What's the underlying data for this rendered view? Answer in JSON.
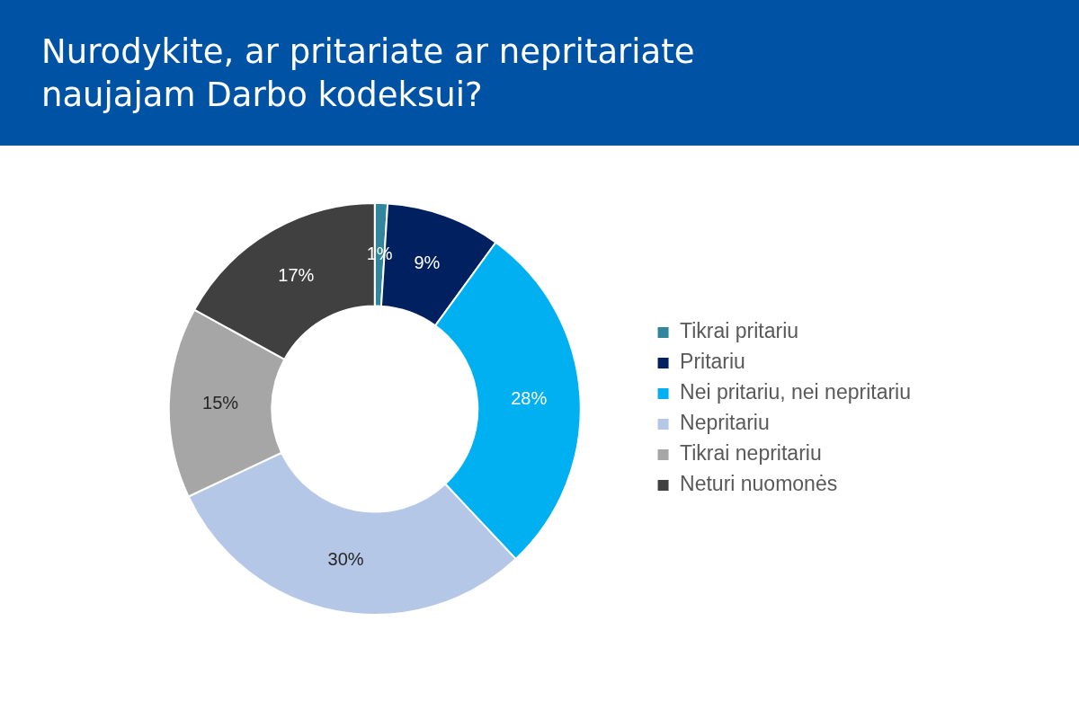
{
  "chart_data": {
    "type": "donut",
    "title": "Nurodykite, ar pritariate ar nepritariate naujajam Darbo kodeksui?",
    "categories": [
      "Tikrai pritariu",
      "Pritariu",
      "Nei pritariu, nei nepritariu",
      "Nepritariu",
      "Tikrai nepritariu",
      "Neturi nuomonės"
    ],
    "values": [
      1,
      9,
      28,
      30,
      15,
      17
    ],
    "colors": [
      "#31859c",
      "#002060",
      "#00b0f0",
      "#b4c7e7",
      "#a6a6a6",
      "#404040"
    ],
    "value_labels": [
      "1%",
      "9%",
      "28%",
      "30%",
      "15%",
      "17%"
    ],
    "legend": "right"
  }
}
